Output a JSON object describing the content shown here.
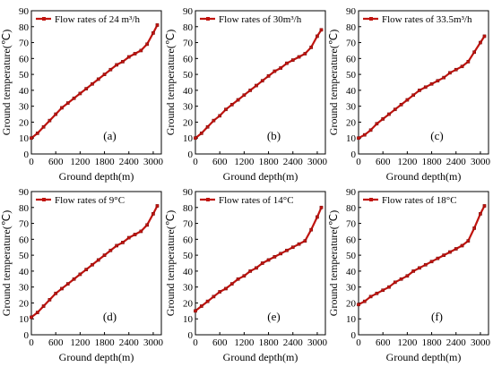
{
  "figure": {
    "shared_xlabel": "Ground depth(m)",
    "shared_ylabel": "Ground temperature(℃)",
    "series_color": "#c0140f",
    "line_style": "line with small square markers"
  },
  "chart_data": [
    {
      "type": "line",
      "panel_label": "(a)",
      "series": [
        {
          "name": "Flow rates of 24 m³/h",
          "x": [
            0,
            150,
            300,
            450,
            600,
            750,
            900,
            1050,
            1200,
            1350,
            1500,
            1650,
            1800,
            1950,
            2100,
            2250,
            2400,
            2550,
            2700,
            2850,
            3000,
            3100
          ],
          "y": [
            10,
            13,
            17,
            21,
            25,
            29,
            32,
            35,
            38,
            41,
            44,
            47,
            50,
            53,
            56,
            58,
            61,
            63,
            65,
            69,
            76,
            81
          ]
        }
      ],
      "xlabel": "Ground depth(m)",
      "ylabel": "Ground temperature(℃)",
      "xlim": [
        0,
        3200
      ],
      "ylim": [
        0,
        90
      ],
      "xticks": [
        0,
        600,
        1200,
        1800,
        2400,
        3000
      ],
      "yticks": [
        0,
        10,
        20,
        30,
        40,
        50,
        60,
        70,
        80,
        90
      ],
      "legend_position": "top-left",
      "grid": false
    },
    {
      "type": "line",
      "panel_label": "(b)",
      "series": [
        {
          "name": "Flow rates of 30m³/h",
          "x": [
            0,
            150,
            300,
            450,
            600,
            750,
            900,
            1050,
            1200,
            1350,
            1500,
            1650,
            1800,
            1950,
            2100,
            2250,
            2400,
            2550,
            2700,
            2850,
            3000,
            3100
          ],
          "y": [
            10,
            13,
            17,
            21,
            24,
            28,
            31,
            34,
            37,
            40,
            43,
            46,
            49,
            52,
            54,
            57,
            59,
            61,
            63,
            67,
            74,
            78
          ]
        }
      ],
      "xlabel": "Ground depth(m)",
      "ylabel": "Ground temperature(℃)",
      "xlim": [
        0,
        3200
      ],
      "ylim": [
        0,
        90
      ],
      "xticks": [
        0,
        600,
        1200,
        1800,
        2400,
        3000
      ],
      "yticks": [
        0,
        10,
        20,
        30,
        40,
        50,
        60,
        70,
        80,
        90
      ],
      "legend_position": "top-left",
      "grid": false
    },
    {
      "type": "line",
      "panel_label": "(c)",
      "series": [
        {
          "name": "Flow rates of 33.5m³/h",
          "x": [
            0,
            150,
            300,
            450,
            600,
            750,
            900,
            1050,
            1200,
            1350,
            1500,
            1650,
            1800,
            1950,
            2100,
            2250,
            2400,
            2550,
            2700,
            2850,
            3000,
            3100
          ],
          "y": [
            10,
            12,
            15,
            19,
            22,
            25,
            28,
            31,
            34,
            37,
            40,
            42,
            44,
            46,
            48,
            51,
            53,
            55,
            58,
            64,
            70,
            74
          ]
        }
      ],
      "xlabel": "Ground depth(m)",
      "ylabel": "Ground temperature(℃)",
      "xlim": [
        0,
        3200
      ],
      "ylim": [
        0,
        90
      ],
      "xticks": [
        0,
        600,
        1200,
        1800,
        2400,
        3000
      ],
      "yticks": [
        0,
        10,
        20,
        30,
        40,
        50,
        60,
        70,
        80,
        90
      ],
      "legend_position": "top-left",
      "grid": false
    },
    {
      "type": "line",
      "panel_label": "(d)",
      "series": [
        {
          "name": "Flow rates of 9°C",
          "x": [
            0,
            150,
            300,
            450,
            600,
            750,
            900,
            1050,
            1200,
            1350,
            1500,
            1650,
            1800,
            1950,
            2100,
            2250,
            2400,
            2550,
            2700,
            2850,
            3000,
            3100
          ],
          "y": [
            11,
            14,
            18,
            22,
            26,
            29,
            32,
            35,
            38,
            41,
            44,
            47,
            50,
            53,
            56,
            58,
            61,
            63,
            65,
            69,
            76,
            81
          ]
        }
      ],
      "xlabel": "Ground depth(m)",
      "ylabel": "Ground temperature(℃)",
      "xlim": [
        0,
        3200
      ],
      "ylim": [
        0,
        90
      ],
      "xticks": [
        0,
        600,
        1200,
        1800,
        2400,
        3000
      ],
      "yticks": [
        0,
        10,
        20,
        30,
        40,
        50,
        60,
        70,
        80,
        90
      ],
      "legend_position": "top-left",
      "grid": false
    },
    {
      "type": "line",
      "panel_label": "(e)",
      "series": [
        {
          "name": "Flow rates of 14°C",
          "x": [
            0,
            150,
            300,
            450,
            600,
            750,
            900,
            1050,
            1200,
            1350,
            1500,
            1650,
            1800,
            1950,
            2100,
            2250,
            2400,
            2550,
            2700,
            2850,
            3000,
            3100
          ],
          "y": [
            15,
            18,
            21,
            24,
            27,
            29,
            32,
            35,
            37,
            40,
            42,
            45,
            47,
            49,
            51,
            53,
            55,
            57,
            59,
            66,
            74,
            80
          ]
        }
      ],
      "xlabel": "Ground depth(m)",
      "ylabel": "Ground temperature(℃)",
      "xlim": [
        0,
        3200
      ],
      "ylim": [
        0,
        90
      ],
      "xticks": [
        0,
        600,
        1200,
        1800,
        2400,
        3000
      ],
      "yticks": [
        0,
        10,
        20,
        30,
        40,
        50,
        60,
        70,
        80,
        90
      ],
      "legend_position": "top-left",
      "grid": false
    },
    {
      "type": "line",
      "panel_label": "(f)",
      "series": [
        {
          "name": "Flow rates of 18°C",
          "x": [
            0,
            150,
            300,
            450,
            600,
            750,
            900,
            1050,
            1200,
            1350,
            1500,
            1650,
            1800,
            1950,
            2100,
            2250,
            2400,
            2550,
            2700,
            2850,
            3000,
            3100
          ],
          "y": [
            19,
            21,
            24,
            26,
            28,
            30,
            33,
            35,
            37,
            40,
            42,
            44,
            46,
            48,
            50,
            52,
            54,
            56,
            59,
            67,
            76,
            81
          ]
        }
      ],
      "xlabel": "Ground depth(m)",
      "ylabel": "Ground temperature(℃)",
      "xlim": [
        0,
        3200
      ],
      "ylim": [
        0,
        90
      ],
      "xticks": [
        0,
        600,
        1200,
        1800,
        2400,
        3000
      ],
      "yticks": [
        0,
        10,
        20,
        30,
        40,
        50,
        60,
        70,
        80,
        90
      ],
      "legend_position": "top-left",
      "grid": false
    }
  ]
}
